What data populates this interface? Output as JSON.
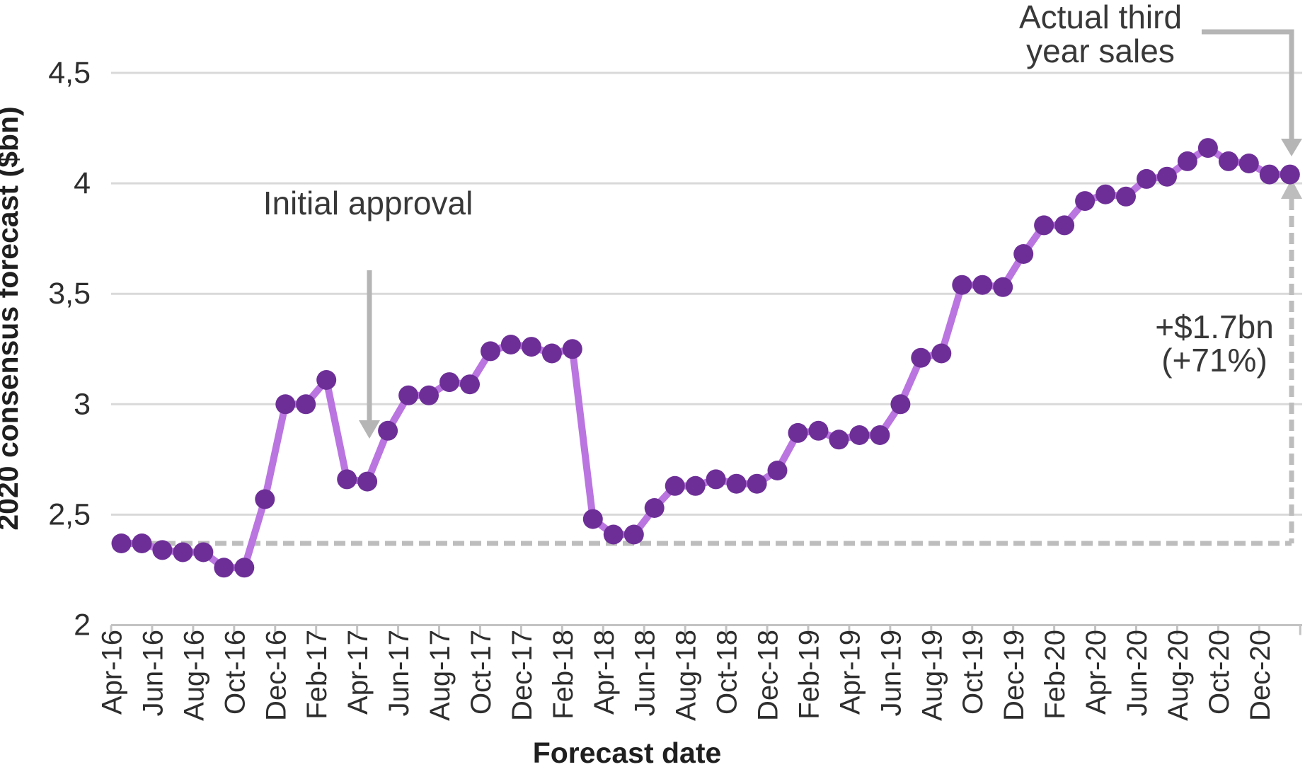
{
  "chart_data": {
    "type": "line",
    "title": "",
    "xlabel": "Forecast date",
    "ylabel": "2020 consensus forecast ($bn)",
    "ylim": [
      2,
      4.5
    ],
    "grid": "horizontal",
    "legend": "none",
    "y_ticks": [
      {
        "value": 4.5,
        "label": "4,5"
      },
      {
        "value": 4.0,
        "label": "4"
      },
      {
        "value": 3.5,
        "label": "3,5"
      },
      {
        "value": 3.0,
        "label": "3"
      },
      {
        "value": 2.5,
        "label": "2,5"
      },
      {
        "value": 2.0,
        "label": "2"
      }
    ],
    "x_tick_labels": [
      "Apr-16",
      "Jun-16",
      "Aug-16",
      "Oct-16",
      "Dec-16",
      "Feb-17",
      "Apr-17",
      "Jun-17",
      "Aug-17",
      "Oct-17",
      "Dec-17",
      "Feb-18",
      "Apr-18",
      "Jun-18",
      "Aug-18",
      "Oct-18",
      "Dec-18",
      "Feb-19",
      "Apr-19",
      "Jun-19",
      "Aug-19",
      "Oct-19",
      "Dec-19",
      "Feb-20",
      "Apr-20",
      "Jun-20",
      "Aug-20",
      "Oct-20",
      "Dec-20"
    ],
    "series": [
      {
        "name": "2020 consensus forecast",
        "months": [
          "Apr-16",
          "May-16",
          "Jun-16",
          "Jul-16",
          "Aug-16",
          "Sep-16",
          "Oct-16",
          "Nov-16",
          "Dec-16",
          "Jan-17",
          "Feb-17",
          "Mar-17",
          "Apr-17",
          "May-17",
          "Jun-17",
          "Jul-17",
          "Aug-17",
          "Sep-17",
          "Oct-17",
          "Nov-17",
          "Dec-17",
          "Jan-18",
          "Feb-18",
          "Mar-18",
          "Apr-18",
          "May-18",
          "Jun-18",
          "Jul-18",
          "Aug-18",
          "Sep-18",
          "Oct-18",
          "Nov-18",
          "Dec-18",
          "Jan-19",
          "Feb-19",
          "Mar-19",
          "Apr-19",
          "May-19",
          "Jun-19",
          "Jul-19",
          "Aug-19",
          "Sep-19",
          "Oct-19",
          "Nov-19",
          "Dec-19",
          "Jan-20",
          "Feb-20",
          "Mar-20",
          "Apr-20",
          "May-20",
          "Jun-20",
          "Jul-20",
          "Aug-20",
          "Sep-20",
          "Oct-20",
          "Nov-20",
          "Dec-20"
        ],
        "values": [
          2.37,
          2.37,
          2.34,
          2.33,
          2.33,
          2.26,
          2.26,
          2.57,
          3.0,
          3.0,
          3.11,
          2.66,
          2.65,
          2.88,
          3.04,
          3.04,
          3.1,
          3.09,
          3.24,
          3.27,
          3.26,
          3.23,
          3.25,
          2.48,
          2.41,
          2.41,
          2.53,
          2.63,
          2.63,
          2.66,
          2.64,
          2.64,
          2.7,
          2.87,
          2.88,
          2.84,
          2.86,
          2.86,
          3.0,
          3.21,
          3.23,
          3.54,
          3.54,
          3.53,
          3.68,
          3.81,
          3.81,
          3.92,
          3.95,
          3.94,
          4.02,
          4.03,
          4.1,
          4.16,
          4.1,
          4.09,
          4.04
        ]
      }
    ],
    "actual_point": {
      "value": 4.04
    },
    "baseline_value": 2.37,
    "annotations": {
      "initial_approval": "Initial approval",
      "actual_label_line1": "Actual third",
      "actual_label_line2": "year sales",
      "gain_line1": "+$1.7bn",
      "gain_line2": "(+71%)"
    },
    "colors": {
      "line": "#ba75e0",
      "marker": "#6d2f97",
      "grid": "#d9d9d9",
      "axis": "#c3c3c3",
      "dashed": "#bdbdbd",
      "arrow": "#b5b5b5",
      "text": "#2e2e2e"
    }
  }
}
